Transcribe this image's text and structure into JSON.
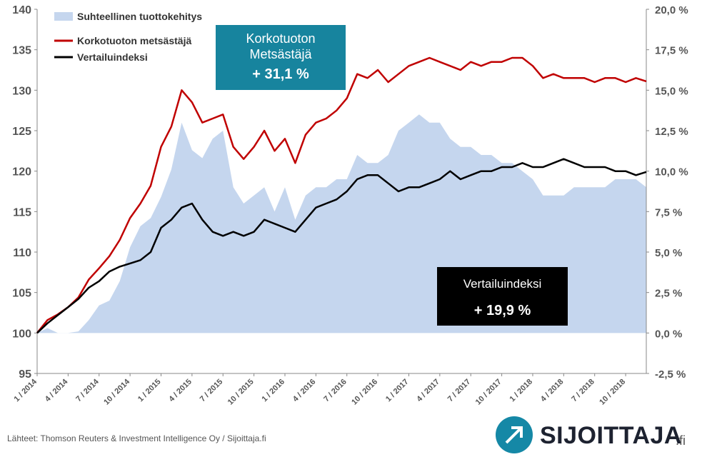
{
  "legend": {
    "area_label": "Suhteellinen tuottokehitys",
    "hunter_label": "Korkotuoton metsästäjä",
    "index_label": "Vertailuindeksi"
  },
  "callouts": {
    "hunter": {
      "line1": "Korkotuoton",
      "line2": "Metsästäjä",
      "value": "+ 31,1 %"
    },
    "index": {
      "line1": "Vertailuindeksi",
      "value": "+ 19,9 %"
    }
  },
  "source": "Lähteet: Thomson Reuters & Investment Intelligence Oy / Sijoittaja.fi",
  "logo": {
    "text": "SIJOITTAJA",
    "suffix": ".fi"
  },
  "colors": {
    "hunter": "#c00000",
    "index": "#000000",
    "area": "#c5d6ee",
    "callout_hunter": "#17849e"
  },
  "chart_data": {
    "type": "line",
    "x_tick_labels": [
      "1 / 2014",
      "4 / 2014",
      "7 / 2014",
      "10 / 2014",
      "1 / 2015",
      "4 / 2015",
      "7 / 2015",
      "10 / 2015",
      "1 / 2016",
      "4 / 2016",
      "7 / 2016",
      "10 / 2016",
      "1 / 2017",
      "4 / 2017",
      "7 / 2017",
      "10 / 2017",
      "1 / 2018",
      "4 / 2018",
      "7 / 2018",
      "10 / 2018"
    ],
    "y_left_ticks": [
      "95",
      "100",
      "105",
      "110",
      "115",
      "120",
      "125",
      "130",
      "135",
      "140"
    ],
    "y_right_ticks": [
      "-2,5 %",
      "0,0 %",
      "2,5 %",
      "5,0 %",
      "7,5 %",
      "10,0 %",
      "12,5 %",
      "15,0 %",
      "17,5 %",
      "20,0 %"
    ],
    "ylim_left": [
      95,
      140
    ],
    "ylim_right": [
      -2.5,
      20.0
    ],
    "x": [
      "2014-01",
      "2014-02",
      "2014-03",
      "2014-04",
      "2014-05",
      "2014-06",
      "2014-07",
      "2014-08",
      "2014-09",
      "2014-10",
      "2014-11",
      "2014-12",
      "2015-01",
      "2015-02",
      "2015-03",
      "2015-04",
      "2015-05",
      "2015-06",
      "2015-07",
      "2015-08",
      "2015-09",
      "2015-10",
      "2015-11",
      "2015-12",
      "2016-01",
      "2016-02",
      "2016-03",
      "2016-04",
      "2016-05",
      "2016-06",
      "2016-07",
      "2016-08",
      "2016-09",
      "2016-10",
      "2016-11",
      "2016-12",
      "2017-01",
      "2017-02",
      "2017-03",
      "2017-04",
      "2017-05",
      "2017-06",
      "2017-07",
      "2017-08",
      "2017-09",
      "2017-10",
      "2017-11",
      "2017-12",
      "2018-01",
      "2018-02",
      "2018-03",
      "2018-04",
      "2018-05",
      "2018-06",
      "2018-07",
      "2018-08",
      "2018-09",
      "2018-10",
      "2018-11",
      "2018-12"
    ],
    "series": [
      {
        "name": "Korkotuoton metsästäjä",
        "axis": "left",
        "values": [
          100.0,
          101.6,
          102.3,
          103.2,
          104.4,
          106.6,
          108.0,
          109.5,
          111.5,
          114.2,
          116.0,
          118.2,
          123.0,
          125.5,
          130.0,
          128.5,
          126.0,
          126.5,
          127.0,
          123.0,
          121.5,
          123.0,
          125.0,
          122.5,
          124.0,
          121.0,
          124.5,
          126.0,
          126.5,
          127.5,
          129.0,
          132.0,
          131.5,
          132.5,
          131.0,
          132.0,
          133.0,
          133.5,
          134.0,
          133.5,
          133.0,
          132.5,
          133.5,
          133.0,
          133.5,
          133.5,
          134.0,
          134.0,
          133.0,
          131.5,
          132.0,
          131.5,
          131.5,
          131.5,
          131.0,
          131.5,
          131.5,
          131.0,
          131.5,
          131.1
        ]
      },
      {
        "name": "Vertailuindeksi",
        "axis": "left",
        "values": [
          100.0,
          101.2,
          102.2,
          103.2,
          104.2,
          105.6,
          106.4,
          107.6,
          108.2,
          108.6,
          109.0,
          110.0,
          113.0,
          114.0,
          115.5,
          116.0,
          114.0,
          112.5,
          112.0,
          112.5,
          112.0,
          112.5,
          114.0,
          113.5,
          113.0,
          112.5,
          114.0,
          115.5,
          116.0,
          116.5,
          117.5,
          119.0,
          119.5,
          119.5,
          118.5,
          117.5,
          118.0,
          118.0,
          118.5,
          119.0,
          120.0,
          119.0,
          119.5,
          120.0,
          120.0,
          120.5,
          120.5,
          121.0,
          120.5,
          120.5,
          121.0,
          121.5,
          121.0,
          120.5,
          120.5,
          120.5,
          120.0,
          120.0,
          119.5,
          119.9
        ]
      },
      {
        "name": "Suhteellinen tuottokehitys",
        "axis": "right",
        "type": "area",
        "values": [
          0.0,
          0.3,
          0.0,
          0.0,
          0.1,
          0.8,
          1.7,
          2.0,
          3.2,
          5.3,
          6.6,
          7.1,
          8.4,
          10.1,
          13.0,
          11.3,
          10.8,
          12.0,
          12.5,
          9.0,
          8.0,
          8.5,
          9.0,
          7.5,
          9.0,
          7.0,
          8.5,
          9.0,
          9.0,
          9.5,
          9.5,
          11.0,
          10.5,
          10.5,
          11.0,
          12.5,
          13.0,
          13.5,
          13.0,
          13.0,
          12.0,
          11.5,
          11.5,
          11.0,
          11.0,
          10.5,
          10.5,
          10.0,
          9.5,
          8.5,
          8.5,
          8.5,
          9.0,
          9.0,
          9.0,
          9.0,
          9.5,
          9.5,
          9.5,
          9.0
        ]
      }
    ]
  }
}
